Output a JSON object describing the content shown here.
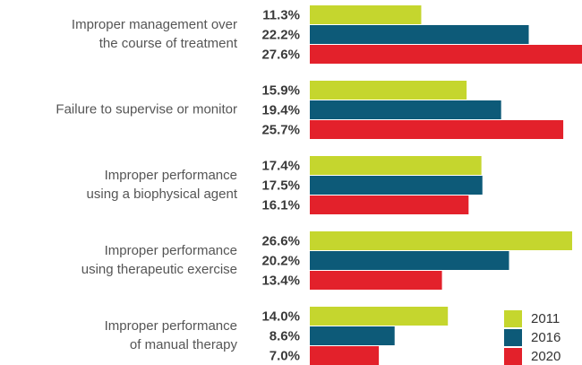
{
  "chart_data": {
    "type": "hbar",
    "categories": [
      [
        "Improper management over",
        "the course of treatment"
      ],
      [
        "Failure to supervise or monitor"
      ],
      [
        "Improper performance",
        "using a biophysical agent"
      ],
      [
        "Improper performance",
        "using therapeutic exercise"
      ],
      [
        "Improper performance",
        "of manual therapy"
      ]
    ],
    "series": [
      {
        "name": "2011",
        "color": "#c5d62e",
        "values": [
          11.3,
          15.9,
          17.4,
          26.6,
          14.0
        ],
        "value_labels": [
          "11.3%",
          "15.9%",
          "17.4%",
          "26.6%",
          "14.0%"
        ]
      },
      {
        "name": "2016",
        "color": "#0d5a78",
        "values": [
          22.2,
          19.4,
          17.5,
          20.2,
          8.6
        ],
        "value_labels": [
          "22.2%",
          "19.4%",
          "17.5%",
          "20.2%",
          "8.6%"
        ]
      },
      {
        "name": "2020",
        "color": "#e3212b",
        "values": [
          27.6,
          25.7,
          16.1,
          13.4,
          7.0
        ],
        "value_labels": [
          "27.6%",
          "25.7%",
          "16.1%",
          "13.4%",
          "7.0%"
        ]
      }
    ],
    "legend": "bottom-right"
  }
}
